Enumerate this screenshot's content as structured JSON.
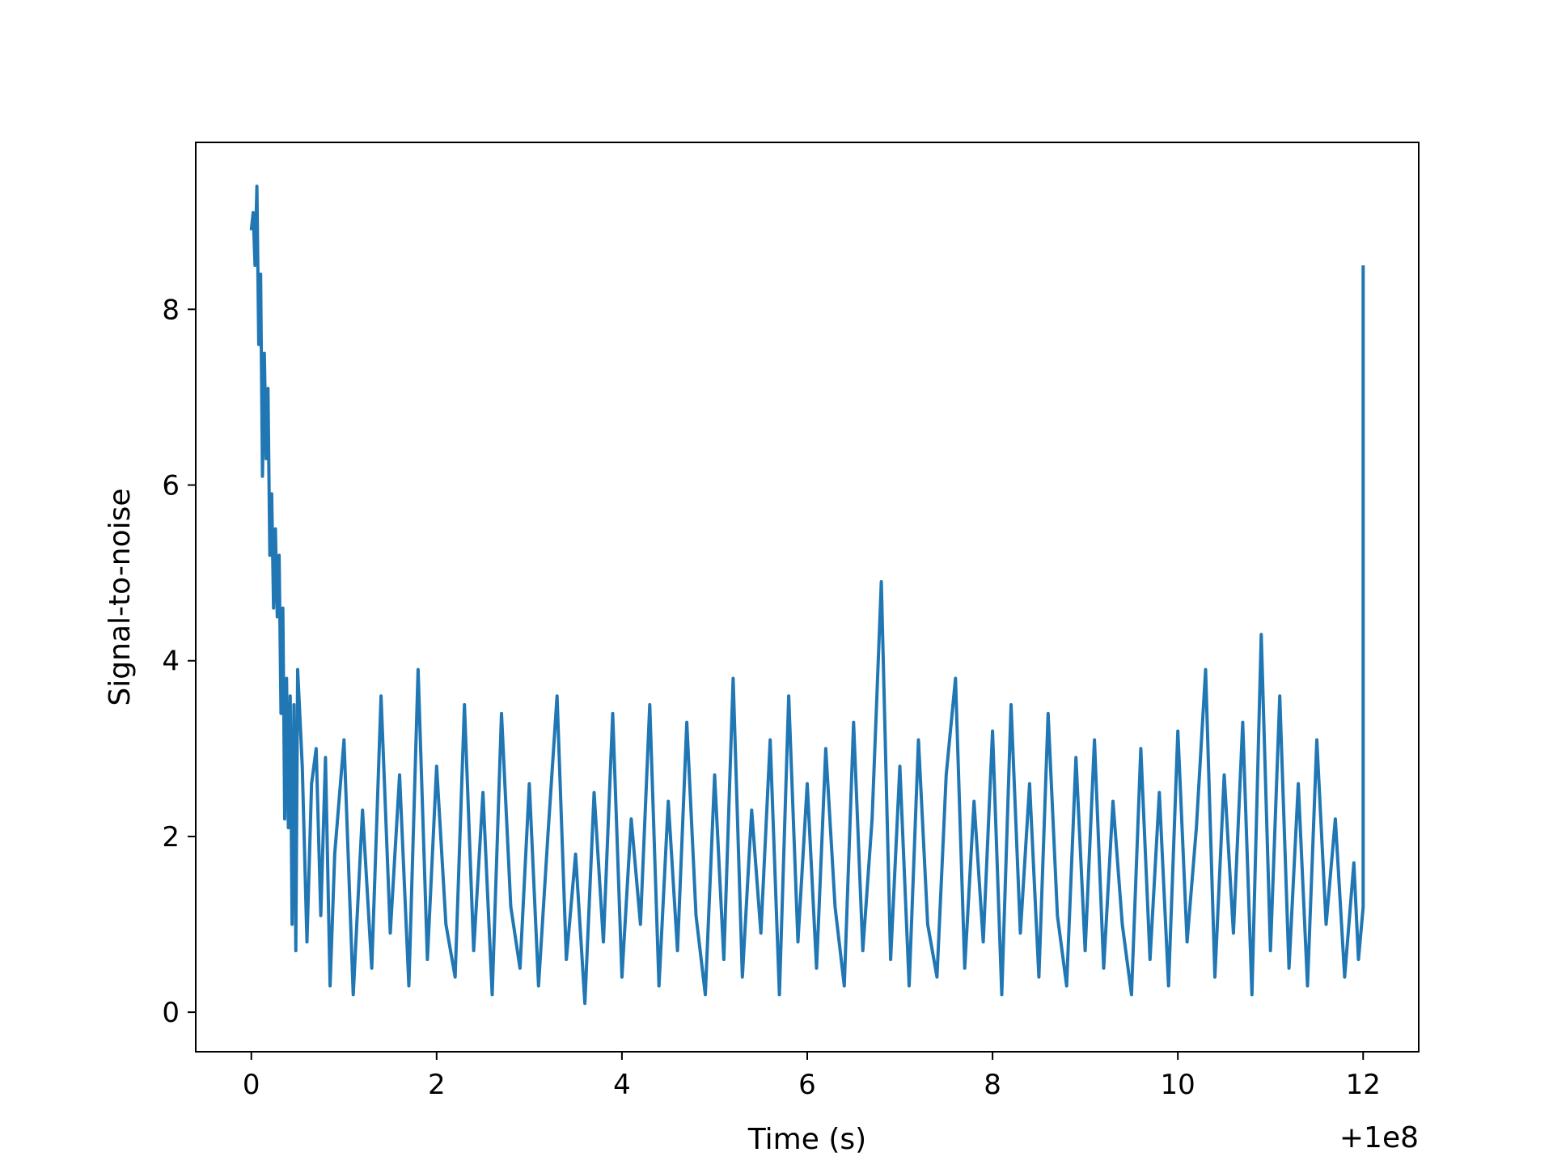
{
  "chart_data": {
    "type": "line",
    "title": "",
    "xlabel": "Time (s)",
    "ylabel": "Signal-to-noise",
    "x_offset_label": "+1e8",
    "xlim": [
      -0.6,
      12.6
    ],
    "ylim": [
      -0.45,
      9.9
    ],
    "grid": false,
    "legend": "none",
    "line_color": "#2077b4",
    "xticks": [
      0,
      2,
      4,
      6,
      8,
      10,
      12
    ],
    "xtick_labels": [
      "0",
      "2",
      "4",
      "6",
      "8",
      "10",
      "12"
    ],
    "yticks": [
      0,
      2,
      4,
      6,
      8
    ],
    "ytick_labels": [
      "0",
      "2",
      "4",
      "6",
      "8"
    ],
    "series": [
      {
        "points": [
          [
            0.0,
            8.9
          ],
          [
            0.02,
            9.1
          ],
          [
            0.04,
            8.5
          ],
          [
            0.06,
            9.4
          ],
          [
            0.08,
            7.6
          ],
          [
            0.1,
            8.4
          ],
          [
            0.12,
            6.1
          ],
          [
            0.14,
            7.5
          ],
          [
            0.16,
            6.3
          ],
          [
            0.18,
            7.1
          ],
          [
            0.2,
            5.2
          ],
          [
            0.22,
            5.9
          ],
          [
            0.24,
            4.6
          ],
          [
            0.26,
            5.5
          ],
          [
            0.28,
            4.5
          ],
          [
            0.3,
            5.2
          ],
          [
            0.32,
            3.4
          ],
          [
            0.34,
            4.6
          ],
          [
            0.36,
            2.2
          ],
          [
            0.38,
            3.8
          ],
          [
            0.4,
            2.1
          ],
          [
            0.42,
            3.6
          ],
          [
            0.44,
            1.0
          ],
          [
            0.46,
            3.5
          ],
          [
            0.48,
            0.7
          ],
          [
            0.5,
            3.9
          ],
          [
            0.55,
            2.8
          ],
          [
            0.6,
            0.8
          ],
          [
            0.65,
            2.6
          ],
          [
            0.7,
            3.0
          ],
          [
            0.75,
            1.1
          ],
          [
            0.8,
            2.9
          ],
          [
            0.85,
            0.3
          ],
          [
            0.9,
            1.8
          ],
          [
            1.0,
            3.1
          ],
          [
            1.1,
            0.2
          ],
          [
            1.2,
            2.3
          ],
          [
            1.3,
            0.5
          ],
          [
            1.4,
            3.6
          ],
          [
            1.5,
            0.9
          ],
          [
            1.6,
            2.7
          ],
          [
            1.7,
            0.3
          ],
          [
            1.8,
            3.9
          ],
          [
            1.9,
            0.6
          ],
          [
            2.0,
            2.8
          ],
          [
            2.1,
            1.0
          ],
          [
            2.2,
            0.4
          ],
          [
            2.3,
            3.5
          ],
          [
            2.4,
            0.7
          ],
          [
            2.5,
            2.5
          ],
          [
            2.6,
            0.2
          ],
          [
            2.7,
            3.4
          ],
          [
            2.8,
            1.2
          ],
          [
            2.9,
            0.5
          ],
          [
            3.0,
            2.6
          ],
          [
            3.1,
            0.3
          ],
          [
            3.2,
            2.0
          ],
          [
            3.3,
            3.6
          ],
          [
            3.4,
            0.6
          ],
          [
            3.5,
            1.8
          ],
          [
            3.6,
            0.1
          ],
          [
            3.7,
            2.5
          ],
          [
            3.8,
            0.8
          ],
          [
            3.9,
            3.4
          ],
          [
            4.0,
            0.4
          ],
          [
            4.1,
            2.2
          ],
          [
            4.2,
            1.0
          ],
          [
            4.3,
            3.5
          ],
          [
            4.4,
            0.3
          ],
          [
            4.5,
            2.4
          ],
          [
            4.6,
            0.7
          ],
          [
            4.7,
            3.3
          ],
          [
            4.8,
            1.1
          ],
          [
            4.9,
            0.2
          ],
          [
            5.0,
            2.7
          ],
          [
            5.1,
            0.6
          ],
          [
            5.2,
            3.8
          ],
          [
            5.3,
            0.4
          ],
          [
            5.4,
            2.3
          ],
          [
            5.5,
            0.9
          ],
          [
            5.6,
            3.1
          ],
          [
            5.7,
            0.2
          ],
          [
            5.8,
            3.6
          ],
          [
            5.9,
            0.8
          ],
          [
            6.0,
            2.6
          ],
          [
            6.1,
            0.5
          ],
          [
            6.2,
            3.0
          ],
          [
            6.3,
            1.2
          ],
          [
            6.4,
            0.3
          ],
          [
            6.5,
            3.3
          ],
          [
            6.6,
            0.7
          ],
          [
            6.7,
            2.2
          ],
          [
            6.8,
            4.9
          ],
          [
            6.9,
            0.6
          ],
          [
            7.0,
            2.8
          ],
          [
            7.1,
            0.3
          ],
          [
            7.2,
            3.1
          ],
          [
            7.3,
            1.0
          ],
          [
            7.4,
            0.4
          ],
          [
            7.5,
            2.7
          ],
          [
            7.6,
            3.8
          ],
          [
            7.7,
            0.5
          ],
          [
            7.8,
            2.4
          ],
          [
            7.9,
            0.8
          ],
          [
            8.0,
            3.2
          ],
          [
            8.1,
            0.2
          ],
          [
            8.2,
            3.5
          ],
          [
            8.3,
            0.9
          ],
          [
            8.4,
            2.6
          ],
          [
            8.5,
            0.4
          ],
          [
            8.6,
            3.4
          ],
          [
            8.7,
            1.1
          ],
          [
            8.8,
            0.3
          ],
          [
            8.9,
            2.9
          ],
          [
            9.0,
            0.7
          ],
          [
            9.1,
            3.1
          ],
          [
            9.2,
            0.5
          ],
          [
            9.3,
            2.4
          ],
          [
            9.4,
            1.0
          ],
          [
            9.5,
            0.2
          ],
          [
            9.6,
            3.0
          ],
          [
            9.7,
            0.6
          ],
          [
            9.8,
            2.5
          ],
          [
            9.9,
            0.3
          ],
          [
            10.0,
            3.2
          ],
          [
            10.1,
            0.8
          ],
          [
            10.2,
            2.1
          ],
          [
            10.3,
            3.9
          ],
          [
            10.4,
            0.4
          ],
          [
            10.5,
            2.7
          ],
          [
            10.6,
            0.9
          ],
          [
            10.7,
            3.3
          ],
          [
            10.8,
            0.2
          ],
          [
            10.9,
            4.3
          ],
          [
            11.0,
            0.7
          ],
          [
            11.1,
            3.6
          ],
          [
            11.2,
            0.5
          ],
          [
            11.3,
            2.6
          ],
          [
            11.4,
            0.3
          ],
          [
            11.5,
            3.1
          ],
          [
            11.6,
            1.0
          ],
          [
            11.7,
            2.2
          ],
          [
            11.8,
            0.4
          ],
          [
            11.9,
            1.7
          ],
          [
            11.95,
            0.6
          ],
          [
            12.0,
            1.2
          ],
          [
            12.0,
            8.5
          ]
        ]
      }
    ]
  }
}
